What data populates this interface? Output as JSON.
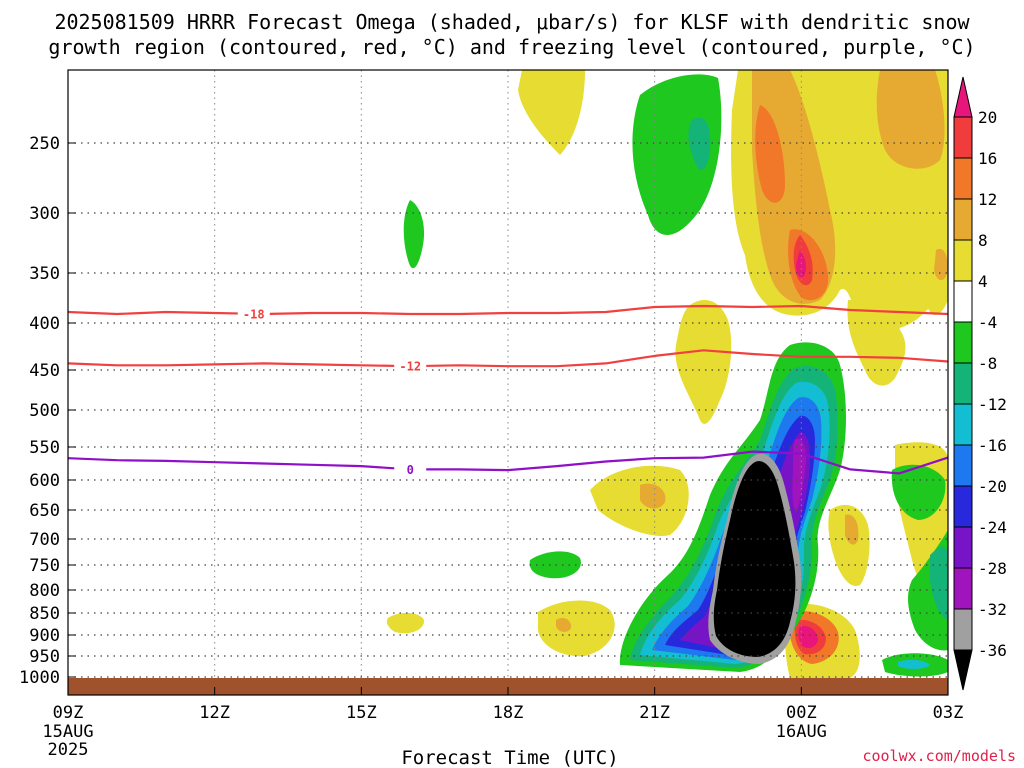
{
  "chart_data": {
    "type": "heatmap",
    "title_lines": [
      "2025081509 HRRR Forecast Omega (shaded, μbar/s) for KLSF with dendritic snow",
      "growth region (contoured, red, °C) and freezing level (contoured, purple, °C)"
    ],
    "xlabel": "Forecast Time (UTC)",
    "credit": "coolwx.com/models",
    "x_ticks": [
      {
        "label": "09Z",
        "sub": [
          "15AUG",
          "2025"
        ]
      },
      {
        "label": "12Z",
        "sub": []
      },
      {
        "label": "15Z",
        "sub": []
      },
      {
        "label": "18Z",
        "sub": []
      },
      {
        "label": "21Z",
        "sub": []
      },
      {
        "label": "00Z",
        "sub": [
          "16AUG"
        ]
      },
      {
        "label": "03Z",
        "sub": []
      }
    ],
    "y_ticks": [
      "250",
      "300",
      "350",
      "400",
      "450",
      "500",
      "550",
      "600",
      "650",
      "700",
      "750",
      "800",
      "850",
      "900",
      "950",
      "1000"
    ],
    "colorbar": {
      "labels": [
        "20",
        "16",
        "12",
        "8",
        "4",
        "-4",
        "-8",
        "-12",
        "-16",
        "-20",
        "-24",
        "-28",
        "-32",
        "-36"
      ],
      "colors": [
        "#e8167a",
        "#f03c3c",
        "#f07828",
        "#e6aa32",
        "#e6dc32",
        "#ffffff",
        "#1ec81e",
        "#14b478",
        "#14bed2",
        "#1e78f0",
        "#2828dc",
        "#7814c8",
        "#a014be",
        "#a0a0a0",
        "#000000"
      ]
    },
    "series": [
      {
        "name": "-18",
        "color": "#f04040",
        "points": [
          [
            9,
            389
          ],
          [
            10,
            391
          ],
          [
            11,
            389
          ],
          [
            12,
            390
          ],
          [
            13,
            391
          ],
          [
            14,
            390
          ],
          [
            15,
            390
          ],
          [
            16,
            391
          ],
          [
            17,
            391
          ],
          [
            18,
            390
          ],
          [
            19,
            390
          ],
          [
            20,
            389
          ],
          [
            21,
            384
          ],
          [
            22,
            383
          ],
          [
            23,
            384
          ],
          [
            24,
            383
          ],
          [
            25,
            387
          ],
          [
            26,
            389
          ],
          [
            27,
            391
          ]
        ]
      },
      {
        "name": "-12",
        "color": "#f04040",
        "points": [
          [
            9,
            443
          ],
          [
            10,
            445
          ],
          [
            11,
            445
          ],
          [
            12,
            444
          ],
          [
            13,
            443
          ],
          [
            14,
            444
          ],
          [
            15,
            445
          ],
          [
            16,
            446
          ],
          [
            17,
            445
          ],
          [
            18,
            446
          ],
          [
            19,
            446
          ],
          [
            20,
            443
          ],
          [
            21,
            435
          ],
          [
            22,
            429
          ],
          [
            23,
            433
          ],
          [
            24,
            436
          ],
          [
            25,
            436
          ],
          [
            26,
            437
          ],
          [
            27,
            441
          ]
        ]
      },
      {
        "name": "0",
        "color": "#9010c8",
        "points": [
          [
            9,
            567
          ],
          [
            10,
            570
          ],
          [
            11,
            571
          ],
          [
            12,
            573
          ],
          [
            13,
            575
          ],
          [
            14,
            577
          ],
          [
            15,
            579
          ],
          [
            16,
            584
          ],
          [
            17,
            584
          ],
          [
            18,
            585
          ],
          [
            19,
            579
          ],
          [
            20,
            572
          ],
          [
            21,
            567
          ],
          [
            22,
            566
          ],
          [
            23,
            557
          ],
          [
            24,
            560
          ],
          [
            25,
            584
          ],
          [
            26,
            590
          ],
          [
            27,
            566
          ]
        ]
      }
    ]
  }
}
